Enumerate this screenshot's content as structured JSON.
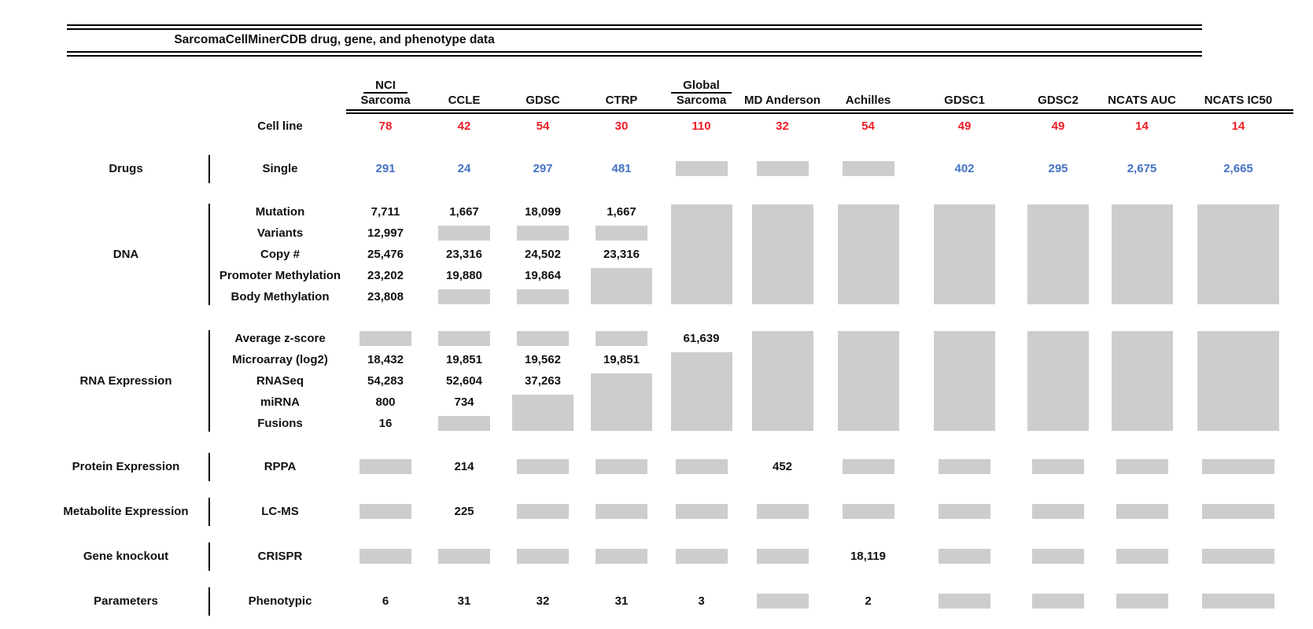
{
  "title": "SarcomaCellMinerCDB drug, gene, and phenotype data",
  "colors": {
    "count_red": "#ee1c24",
    "drug_blue": "#4472c4",
    "no_data_gray": "#cdcdcd"
  },
  "header": {
    "columns": [
      {
        "top": "NCI",
        "label": "Sarcoma"
      },
      {
        "label": "CCLE"
      },
      {
        "label": "GDSC"
      },
      {
        "label": "CTRP"
      },
      {
        "top": "Global",
        "label": "Sarcoma"
      },
      {
        "label": "MD Anderson"
      },
      {
        "label": "Achilles"
      },
      {
        "label": "GDSC1"
      },
      {
        "label": "GDSC2"
      },
      {
        "label": "NCATS AUC"
      },
      {
        "label": "NCATS IC50"
      }
    ],
    "cell_line": {
      "label": "Cell line",
      "values": [
        "78",
        "42",
        "54",
        "30",
        "110",
        "32",
        "54",
        "49",
        "49",
        "14",
        "14"
      ]
    }
  },
  "sections": [
    {
      "name": "Drugs",
      "rows": [
        {
          "label": "Single",
          "color": "blue",
          "cells": [
            "291",
            "24",
            "297",
            "481",
            "#1",
            "#1",
            "#1",
            "402",
            "295",
            "2,675",
            "2,665"
          ]
        }
      ]
    },
    {
      "name": "DNA",
      "rows": [
        {
          "label": "Mutation",
          "cells": [
            "7,711",
            "1,667",
            "18,099",
            "1,667",
            "#5",
            "#5",
            "#5",
            "#5",
            "#5",
            "#5",
            "#5"
          ]
        },
        {
          "label": "Variants",
          "cells": [
            "12,997",
            "#1",
            "#1",
            "#1",
            "",
            "",
            "",
            "",
            "",
            "",
            ""
          ]
        },
        {
          "label": "Copy #",
          "cells": [
            "25,476",
            "23,316",
            "24,502",
            "23,316",
            "",
            "",
            "",
            "",
            "",
            "",
            ""
          ]
        },
        {
          "label": "Promoter Methylation",
          "cells": [
            "23,202",
            "19,880",
            "19,864",
            "#2",
            "",
            "",
            "",
            "",
            "",
            "",
            ""
          ]
        },
        {
          "label": "Body Methylation",
          "cells": [
            "23,808",
            "#1",
            "#1",
            "",
            "",
            "",
            "",
            "",
            "",
            "",
            ""
          ]
        }
      ]
    },
    {
      "name": "RNA Expression",
      "rows": [
        {
          "label": "Average z-score",
          "cells": [
            "#1",
            "#1",
            "#1",
            "#1",
            "61,639",
            "#5",
            "#5",
            "#5",
            "#5",
            "#5",
            "#5"
          ]
        },
        {
          "label": "Microarray (log2)",
          "cells": [
            "18,432",
            "19,851",
            "19,562",
            "19,851",
            "#4",
            "",
            "",
            "",
            "",
            "",
            ""
          ]
        },
        {
          "label": "RNASeq",
          "cells": [
            "54,283",
            "52,604",
            "37,263",
            "#3",
            "",
            "",
            "",
            "",
            "",
            "",
            ""
          ]
        },
        {
          "label": "miRNA",
          "cells": [
            "800",
            "734",
            "#2",
            "",
            "",
            "",
            "",
            "",
            "",
            "",
            ""
          ]
        },
        {
          "label": "Fusions",
          "cells": [
            "16",
            "#1",
            "",
            "",
            "",
            "",
            "",
            "",
            "",
            "",
            ""
          ]
        }
      ]
    },
    {
      "name": "Protein Expression",
      "rows": [
        {
          "label": "RPPA",
          "cells": [
            "#1",
            "214",
            "#1",
            "#1",
            "#1",
            "452",
            "#1",
            "#1",
            "#1",
            "#1",
            "#1"
          ]
        }
      ]
    },
    {
      "name": "Metabolite Expression",
      "rows": [
        {
          "label": "LC-MS",
          "cells": [
            "#1",
            "225",
            "#1",
            "#1",
            "#1",
            "#1",
            "#1",
            "#1",
            "#1",
            "#1",
            "#1"
          ]
        }
      ]
    },
    {
      "name": "Gene knockout",
      "rows": [
        {
          "label": "CRISPR",
          "cells": [
            "#1",
            "#1",
            "#1",
            "#1",
            "#1",
            "#1",
            "18,119",
            "#1",
            "#1",
            "#1",
            "#1"
          ]
        }
      ]
    },
    {
      "name": "Parameters",
      "rows": [
        {
          "label": "Phenotypic",
          "cells": [
            "6",
            "31",
            "32",
            "31",
            "3",
            "#1",
            "2",
            "#1",
            "#1",
            "#1",
            "#1"
          ]
        }
      ]
    }
  ]
}
